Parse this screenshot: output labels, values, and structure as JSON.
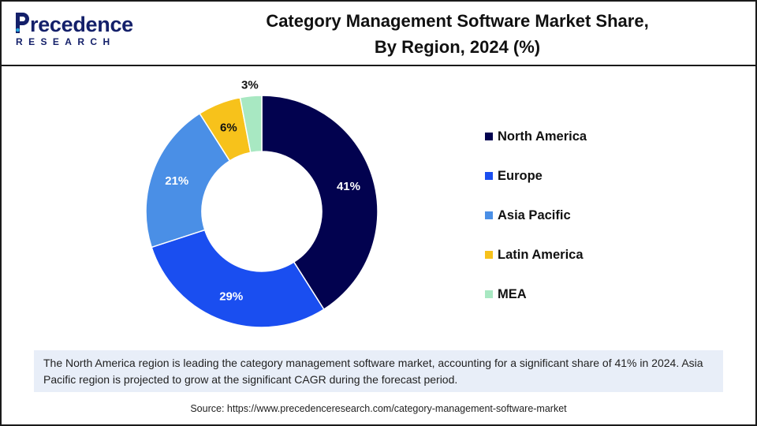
{
  "logo": {
    "word": "recedence",
    "sub": "RESEARCH",
    "color": "#14206a"
  },
  "title": {
    "line1": "Category Management Software Market Share,",
    "line2": "By Region, 2024 (%)"
  },
  "chart_data": {
    "type": "pie",
    "style": "donut",
    "title": "Category Management Software Market Share, By Region, 2024 (%)",
    "unit": "%",
    "categories": [
      "North America",
      "Europe",
      "Asia Pacific",
      "Latin America",
      "MEA"
    ],
    "values": [
      41,
      29,
      21,
      6,
      3
    ],
    "labels": [
      "41%",
      "29%",
      "21%",
      "6%",
      "3%"
    ],
    "colors": [
      "#02024f",
      "#1a4ef0",
      "#4a8fe6",
      "#f7c21b",
      "#a8e8c2"
    ],
    "label_colors": [
      "#ffffff",
      "#ffffff",
      "#ffffff",
      "#111111",
      "#111111"
    ],
    "start_angle_deg": 0,
    "direction": "clockwise",
    "legend_position": "right"
  },
  "note": {
    "text": "The North America region is leading the category management software market, accounting for a significant share of 41% in 2024. Asia Pacific region is projected to grow at the significant CAGR during the forecast period."
  },
  "source": {
    "text": "Source: https://www.precedenceresearch.com/category-management-software-market"
  }
}
